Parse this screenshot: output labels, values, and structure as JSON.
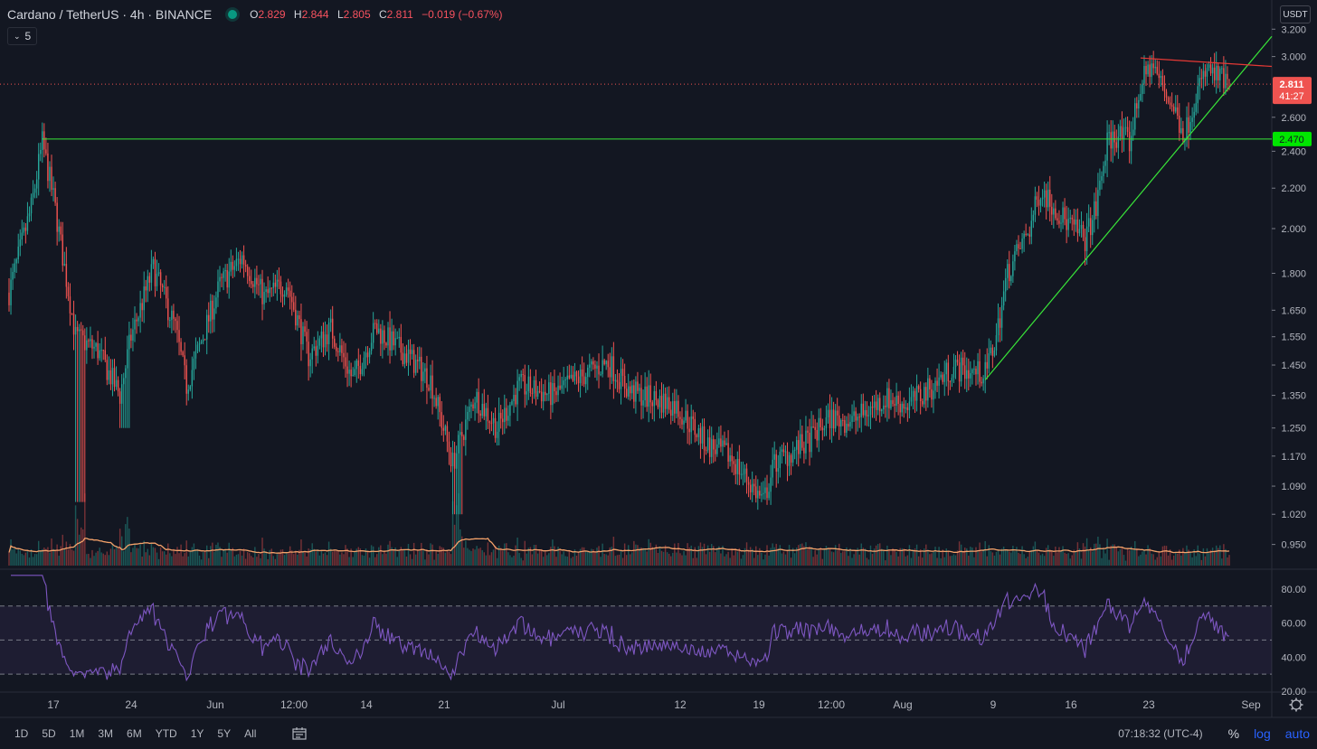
{
  "header": {
    "symbol": "Cardano / TetherUS · 4h · BINANCE",
    "o_label": "O",
    "o": "2.829",
    "h_label": "H",
    "h": "2.844",
    "l_label": "L",
    "l": "2.805",
    "c_label": "C",
    "c": "2.811",
    "change": "−0.019 (−0.67%)",
    "interval_badge": "5"
  },
  "currency_button": "USDT",
  "price_axis": {
    "ticks": [
      "3.200",
      "3.000",
      "2.600",
      "2.400",
      "2.200",
      "2.000",
      "1.800",
      "1.650",
      "1.550",
      "1.450",
      "1.350",
      "1.250",
      "1.170",
      "1.090",
      "1.020",
      "0.950"
    ],
    "current_price": "2.811",
    "countdown": "41:27",
    "level_label": "2.470"
  },
  "rsi_axis": {
    "ticks": [
      "80.00",
      "60.00",
      "40.00",
      "20.00"
    ]
  },
  "time_axis": {
    "labels": [
      "17",
      "24",
      "Jun",
      "12:00",
      "14",
      "21",
      "Jul",
      "12",
      "19",
      "12:00",
      "Aug",
      "9",
      "16",
      "23",
      "Sep"
    ]
  },
  "toolbar": {
    "timeframes": [
      "1D",
      "5D",
      "1M",
      "3M",
      "6M",
      "YTD",
      "1Y",
      "5Y",
      "All"
    ],
    "clock": "07:18:32 (UTC-4)",
    "percent": "%",
    "log": "log",
    "auto": "auto"
  },
  "colors": {
    "background": "#131722",
    "up": "#26a69a",
    "down": "#ef5350",
    "support_line": "#39e639",
    "resistance_line": "#e53935",
    "rsi_line": "#7e57c2",
    "volume_ma": "#f5a26a"
  },
  "chart_data": {
    "type": "candlestick",
    "scale": "log",
    "ylim": [
      0.9,
      3.25
    ],
    "x_start": "2021-05-13",
    "x_end": "2021-08-31",
    "anchors": [
      {
        "date": "2021-05-13",
        "close": 1.72
      },
      {
        "date": "2021-05-15",
        "close": 2.1
      },
      {
        "date": "2021-05-16",
        "close": 2.45
      },
      {
        "date": "2021-05-17",
        "close": 2.15
      },
      {
        "date": "2021-05-19",
        "close": 1.55
      },
      {
        "date": "2021-05-21",
        "close": 1.5
      },
      {
        "date": "2021-05-23",
        "close": 1.35
      },
      {
        "date": "2021-05-24",
        "close": 1.55
      },
      {
        "date": "2021-05-26",
        "close": 1.82
      },
      {
        "date": "2021-05-28",
        "close": 1.58
      },
      {
        "date": "2021-05-29",
        "close": 1.38
      },
      {
        "date": "2021-06-01",
        "close": 1.75
      },
      {
        "date": "2021-06-03",
        "close": 1.87
      },
      {
        "date": "2021-06-05",
        "close": 1.7
      },
      {
        "date": "2021-06-07",
        "close": 1.76
      },
      {
        "date": "2021-06-09",
        "close": 1.48
      },
      {
        "date": "2021-06-11",
        "close": 1.58
      },
      {
        "date": "2021-06-13",
        "close": 1.4
      },
      {
        "date": "2021-06-15",
        "close": 1.58
      },
      {
        "date": "2021-06-18",
        "close": 1.48
      },
      {
        "date": "2021-06-20",
        "close": 1.4
      },
      {
        "date": "2021-06-22",
        "close": 1.15
      },
      {
        "date": "2021-06-24",
        "close": 1.35
      },
      {
        "date": "2021-06-26",
        "close": 1.25
      },
      {
        "date": "2021-06-28",
        "close": 1.38
      },
      {
        "date": "2021-07-01",
        "close": 1.35
      },
      {
        "date": "2021-07-04",
        "close": 1.42
      },
      {
        "date": "2021-07-06",
        "close": 1.46
      },
      {
        "date": "2021-07-08",
        "close": 1.36
      },
      {
        "date": "2021-07-12",
        "close": 1.32
      },
      {
        "date": "2021-07-15",
        "close": 1.2
      },
      {
        "date": "2021-07-17",
        "close": 1.17
      },
      {
        "date": "2021-07-20",
        "close": 1.05
      },
      {
        "date": "2021-07-21",
        "close": 1.15
      },
      {
        "date": "2021-07-24",
        "close": 1.21
      },
      {
        "date": "2021-07-26",
        "close": 1.28
      },
      {
        "date": "2021-07-28",
        "close": 1.27
      },
      {
        "date": "2021-07-31",
        "close": 1.34
      },
      {
        "date": "2021-08-02",
        "close": 1.32
      },
      {
        "date": "2021-08-04",
        "close": 1.37
      },
      {
        "date": "2021-08-06",
        "close": 1.44
      },
      {
        "date": "2021-08-09",
        "close": 1.42
      },
      {
        "date": "2021-08-10",
        "close": 1.55
      },
      {
        "date": "2021-08-11",
        "close": 1.8
      },
      {
        "date": "2021-08-13",
        "close": 2.0
      },
      {
        "date": "2021-08-14",
        "close": 2.2
      },
      {
        "date": "2021-08-16",
        "close": 2.05
      },
      {
        "date": "2021-08-18",
        "close": 1.95
      },
      {
        "date": "2021-08-19",
        "close": 2.1
      },
      {
        "date": "2021-08-20",
        "close": 2.45
      },
      {
        "date": "2021-08-21",
        "close": 2.5
      },
      {
        "date": "2021-08-22",
        "close": 2.45
      },
      {
        "date": "2021-08-23",
        "close": 2.8
      },
      {
        "date": "2021-08-24",
        "close": 2.95
      },
      {
        "date": "2021-08-26",
        "close": 2.65
      },
      {
        "date": "2021-08-27",
        "close": 2.5
      },
      {
        "date": "2021-08-28",
        "close": 2.75
      },
      {
        "date": "2021-08-29",
        "close": 2.9
      },
      {
        "date": "2021-08-30",
        "close": 2.85
      },
      {
        "date": "2021-08-31",
        "close": 2.811
      }
    ],
    "horizontal_level": 2.47,
    "support_trendline": [
      {
        "date": "2021-08-09",
        "price": 1.4
      },
      {
        "date": "2021-08-31",
        "price": 2.79
      }
    ],
    "resistance_trendline": [
      {
        "date": "2021-08-23",
        "price": 2.99
      },
      {
        "date": "2021-08-31",
        "price": 2.95
      }
    ],
    "rsi": {
      "ylim": [
        20,
        90
      ],
      "upper": 70,
      "mid": 50,
      "lower": 30
    }
  }
}
